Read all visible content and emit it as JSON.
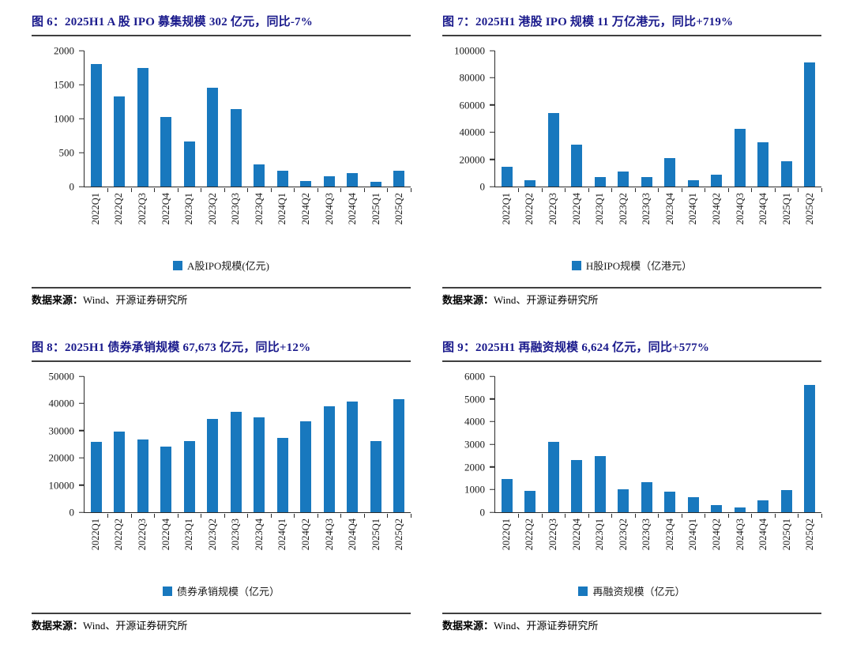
{
  "report": {
    "source_label": "数据来源：",
    "source_text": "Wind、开源证券研究所"
  },
  "colors": {
    "bar_blue": "#1878be",
    "title_navy": "#1a1a8c",
    "axis_dark": "#2a2a2a"
  },
  "chart_data": [
    {
      "id": "fig6",
      "type": "bar",
      "title": "图 6：2025H1 A 股 IPO 募集规模 302 亿元，同比-7%",
      "legend": "A股IPO规模(亿元)",
      "legend_position": "bottom",
      "grid": false,
      "ylim": [
        0,
        2000
      ],
      "ytick_step": 500,
      "categories": [
        "2022Q1",
        "2022Q2",
        "2022Q3",
        "2022Q4",
        "2023Q1",
        "2023Q2",
        "2023Q3",
        "2023Q4",
        "2024Q1",
        "2024Q2",
        "2024Q3",
        "2024Q4",
        "2025Q1",
        "2025Q2"
      ],
      "values": [
        1800,
        1320,
        1740,
        1020,
        660,
        1450,
        1140,
        330,
        235,
        85,
        150,
        195,
        75,
        230
      ]
    },
    {
      "id": "fig7",
      "type": "bar",
      "title": "图 7：2025H1 港股 IPO 规模 11 万亿港元，同比+719%",
      "legend": "H股IPO规模（亿港元）",
      "legend_position": "bottom",
      "grid": false,
      "ylim": [
        0,
        100000
      ],
      "ytick_step": 20000,
      "categories": [
        "2022Q1",
        "2022Q2",
        "2022Q3",
        "2022Q4",
        "2023Q1",
        "2023Q2",
        "2023Q3",
        "2023Q4",
        "2024Q1",
        "2024Q2",
        "2024Q3",
        "2024Q4",
        "2025Q1",
        "2025Q2"
      ],
      "values": [
        14500,
        4800,
        54000,
        31000,
        6800,
        11000,
        7000,
        21000,
        4800,
        8700,
        42500,
        32500,
        18500,
        91000
      ]
    },
    {
      "id": "fig8",
      "type": "bar",
      "title": "图 8：2025H1 债券承销规模 67,673 亿元，同比+12%",
      "legend": "债券承销规模（亿元）",
      "legend_position": "bottom",
      "grid": false,
      "ylim": [
        0,
        50000
      ],
      "ytick_step": 10000,
      "categories": [
        "2022Q1",
        "2022Q2",
        "2022Q3",
        "2022Q4",
        "2023Q1",
        "2023Q2",
        "2023Q3",
        "2023Q4",
        "2024Q1",
        "2024Q2",
        "2024Q3",
        "2024Q4",
        "2025Q1",
        "2025Q2"
      ],
      "values": [
        25800,
        29800,
        26800,
        24000,
        26100,
        34200,
        37000,
        35000,
        27200,
        33300,
        39000,
        40800,
        26100,
        41500
      ]
    },
    {
      "id": "fig9",
      "type": "bar",
      "title": "图 9：2025H1 再融资规模 6,624 亿元，同比+577%",
      "legend": "再融资规模（亿元）",
      "legend_position": "bottom",
      "grid": false,
      "ylim": [
        0,
        6000
      ],
      "ytick_step": 1000,
      "categories": [
        "2022Q1",
        "2022Q2",
        "2022Q3",
        "2022Q4",
        "2023Q1",
        "2023Q2",
        "2023Q3",
        "2023Q4",
        "2024Q1",
        "2024Q2",
        "2024Q3",
        "2024Q4",
        "2025Q1",
        "2025Q2"
      ],
      "values": [
        1450,
        950,
        3120,
        2300,
        2480,
        1020,
        1340,
        920,
        660,
        300,
        200,
        530,
        980,
        5630
      ]
    }
  ]
}
